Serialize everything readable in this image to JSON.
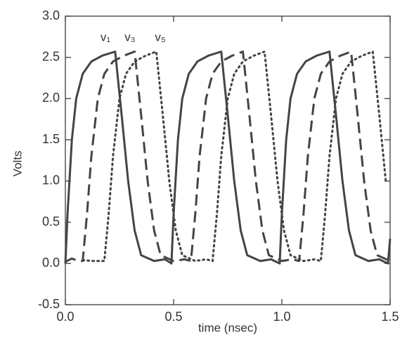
{
  "chart_data": {
    "type": "line",
    "xlabel": "time (nsec)",
    "ylabel": "Volts",
    "xlim": [
      0,
      1.5
    ],
    "ylim": [
      -0.5,
      3.0
    ],
    "xticks": [
      {
        "value": 0,
        "label": "0.0"
      },
      0.5,
      {
        "value": 1,
        "label": "1.0"
      },
      1.5
    ],
    "yticks": [
      -0.5,
      {
        "value": 0,
        "label": "0.0"
      },
      0.5,
      {
        "value": 1,
        "label": "1.0"
      },
      1.5,
      {
        "value": 2,
        "label": "2.0"
      },
      2.5,
      {
        "value": 3,
        "label": "3.0"
      }
    ],
    "annotations": [
      "v₁",
      "v₃",
      "v₅"
    ],
    "series": [
      {
        "color": "#444444",
        "dash": "solid",
        "x": [
          0,
          0.01,
          0.03,
          0.05,
          0.08,
          0.12,
          0.17,
          0.23,
          0.26,
          0.29,
          0.32,
          0.35,
          0.41,
          0.46,
          0.49,
          0.5,
          0.52,
          0.54,
          0.57,
          0.61,
          0.66,
          0.72,
          0.75,
          0.78,
          0.81,
          0.84,
          0.9,
          0.95,
          0.99,
          1.0,
          1.02,
          1.04,
          1.07,
          1.11,
          1.16,
          1.22,
          1.25,
          1.28,
          1.31,
          1.34,
          1.4,
          1.45,
          1.49,
          1.5
        ],
        "values": [
          0,
          0.6,
          1.5,
          2.0,
          2.3,
          2.45,
          2.52,
          2.57,
          1.8,
          1.0,
          0.4,
          0.1,
          0.03,
          0.05,
          0,
          0.6,
          1.5,
          2.0,
          2.3,
          2.45,
          2.52,
          2.57,
          1.8,
          1.0,
          0.4,
          0.1,
          0.03,
          0.05,
          0,
          0.6,
          1.5,
          2.0,
          2.3,
          2.45,
          2.52,
          2.57,
          1.8,
          1.0,
          0.4,
          0.1,
          0.03,
          0.05,
          0,
          0.3
        ]
      },
      {
        "color": "#444444",
        "dash": "dashed",
        "x": [
          0,
          0.03,
          0.06,
          0.08,
          0.1,
          0.12,
          0.15,
          0.18,
          0.22,
          0.27,
          0.32,
          0.35,
          0.38,
          0.41,
          0.44,
          0.5,
          0.55,
          0.58,
          0.6,
          0.62,
          0.65,
          0.68,
          0.72,
          0.77,
          0.82,
          0.85,
          0.88,
          0.91,
          0.94,
          1.0,
          1.05,
          1.08,
          1.1,
          1.12,
          1.15,
          1.18,
          1.22,
          1.27,
          1.32,
          1.35,
          1.38,
          1.41,
          1.44,
          1.5
        ],
        "values": [
          0.02,
          0.06,
          0.03,
          0.03,
          0.6,
          1.3,
          2.0,
          2.3,
          2.45,
          2.52,
          2.57,
          1.8,
          1.0,
          0.4,
          0.1,
          0.03,
          0.05,
          0.03,
          0.6,
          1.3,
          2.0,
          2.3,
          2.45,
          2.52,
          2.57,
          1.8,
          1.0,
          0.4,
          0.1,
          0.03,
          0.05,
          0.03,
          0.6,
          1.3,
          2.0,
          2.3,
          2.45,
          2.52,
          2.57,
          1.8,
          1.0,
          0.4,
          0.1,
          0.03
        ]
      },
      {
        "color": "#444444",
        "dash": "dotted",
        "x": [
          0.08,
          0.13,
          0.18,
          0.2,
          0.22,
          0.25,
          0.28,
          0.32,
          0.37,
          0.42,
          0.45,
          0.48,
          0.51,
          0.54,
          0.6,
          0.65,
          0.68,
          0.7,
          0.72,
          0.75,
          0.78,
          0.82,
          0.87,
          0.92,
          0.95,
          0.98,
          1.01,
          1.04,
          1.1,
          1.15,
          1.18,
          1.2,
          1.22,
          1.25,
          1.28,
          1.32,
          1.37,
          1.42,
          1.45,
          1.48
        ],
        "values": [
          0.04,
          0.03,
          0.03,
          0.6,
          1.3,
          2.0,
          2.3,
          2.45,
          2.52,
          2.57,
          1.8,
          1.0,
          0.4,
          0.1,
          0.03,
          0.05,
          0.03,
          0.6,
          1.3,
          2.0,
          2.3,
          2.45,
          2.52,
          2.57,
          1.8,
          1.0,
          0.4,
          0.1,
          0.03,
          0.05,
          0.03,
          0.6,
          1.3,
          2.0,
          2.3,
          2.45,
          2.52,
          2.57,
          1.8,
          1.0
        ]
      }
    ]
  }
}
